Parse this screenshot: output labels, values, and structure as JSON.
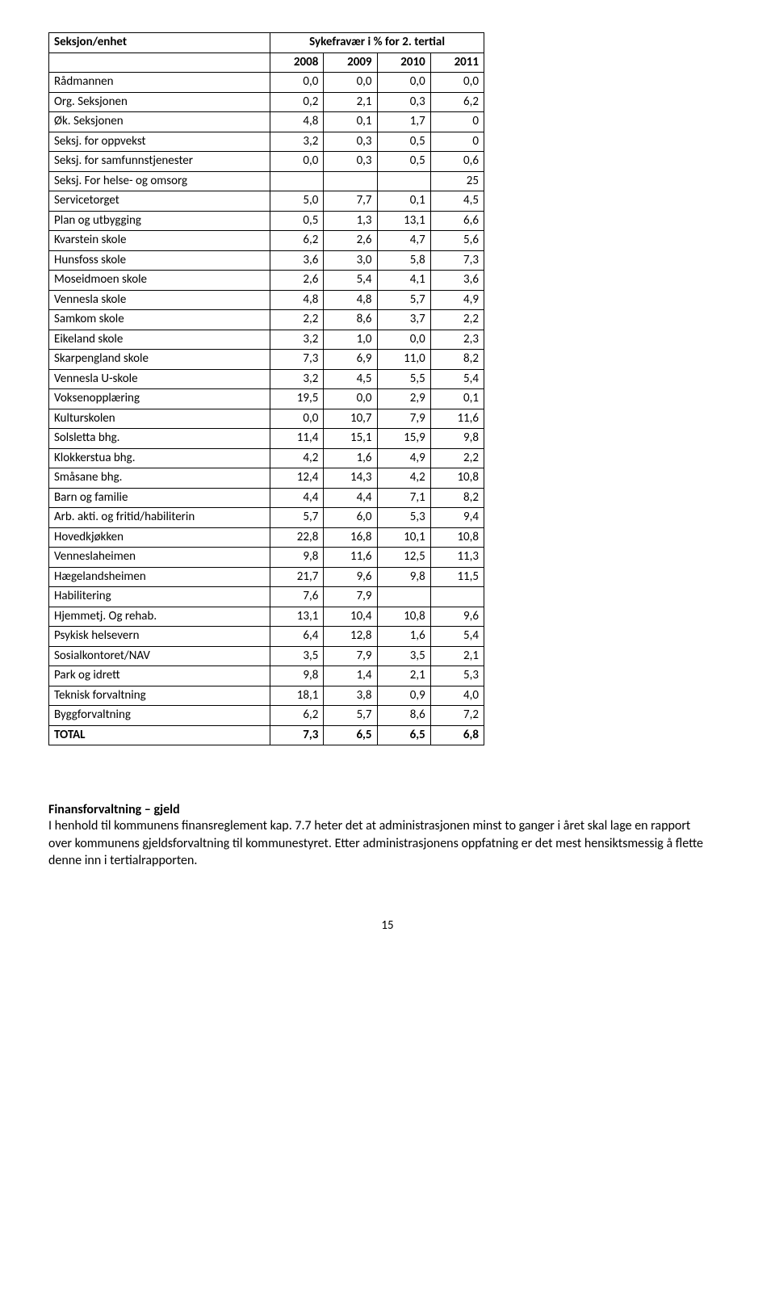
{
  "table": {
    "header1_left": "Seksjon/enhet",
    "header1_right": "Sykefravær i % for 2. tertial",
    "years": [
      "2008",
      "2009",
      "2010",
      "2011"
    ],
    "rows": [
      {
        "label": "Rådmannen",
        "v": [
          "0,0",
          "0,0",
          "0,0",
          "0,0"
        ]
      },
      {
        "label": "Org. Seksjonen",
        "v": [
          "0,2",
          "2,1",
          "0,3",
          "6,2"
        ]
      },
      {
        "label": "Øk. Seksjonen",
        "v": [
          "4,8",
          "0,1",
          "1,7",
          "0"
        ]
      },
      {
        "label": "Seksj. for oppvekst",
        "v": [
          "3,2",
          "0,3",
          "0,5",
          "0"
        ]
      },
      {
        "label": "Seksj. for samfunnstjenester",
        "v": [
          "0,0",
          "0,3",
          "0,5",
          "0,6"
        ]
      },
      {
        "label": "Seksj. For helse- og omsorg",
        "v": [
          "",
          "",
          "",
          "25"
        ]
      },
      {
        "label": "Servicetorget",
        "v": [
          "5,0",
          "7,7",
          "0,1",
          "4,5"
        ]
      },
      {
        "label": "Plan og utbygging",
        "v": [
          "0,5",
          "1,3",
          "13,1",
          "6,6"
        ]
      },
      {
        "label": "Kvarstein skole",
        "v": [
          "6,2",
          "2,6",
          "4,7",
          "5,6"
        ]
      },
      {
        "label": "Hunsfoss skole",
        "v": [
          "3,6",
          "3,0",
          "5,8",
          "7,3"
        ]
      },
      {
        "label": "Moseidmoen skole",
        "v": [
          "2,6",
          "5,4",
          "4,1",
          "3,6"
        ]
      },
      {
        "label": "Vennesla skole",
        "v": [
          "4,8",
          "4,8",
          "5,7",
          "4,9"
        ]
      },
      {
        "label": "Samkom skole",
        "v": [
          "2,2",
          "8,6",
          "3,7",
          "2,2"
        ]
      },
      {
        "label": "Eikeland skole",
        "v": [
          "3,2",
          "1,0",
          "0,0",
          "2,3"
        ]
      },
      {
        "label": "Skarpengland skole",
        "v": [
          "7,3",
          "6,9",
          "11,0",
          "8,2"
        ]
      },
      {
        "label": "Vennesla U-skole",
        "v": [
          "3,2",
          "4,5",
          "5,5",
          "5,4"
        ]
      },
      {
        "label": "Voksenopplæring",
        "v": [
          "19,5",
          "0,0",
          "2,9",
          "0,1"
        ]
      },
      {
        "label": "Kulturskolen",
        "v": [
          "0,0",
          "10,7",
          "7,9",
          "11,6"
        ]
      },
      {
        "label": "Solsletta bhg.",
        "v": [
          "11,4",
          "15,1",
          "15,9",
          "9,8"
        ]
      },
      {
        "label": "Klokkerstua bhg.",
        "v": [
          "4,2",
          "1,6",
          "4,9",
          "2,2"
        ]
      },
      {
        "label": "Småsane bhg.",
        "v": [
          "12,4",
          "14,3",
          "4,2",
          "10,8"
        ]
      },
      {
        "label": "Barn og familie",
        "v": [
          "4,4",
          "4,4",
          "7,1",
          "8,2"
        ]
      },
      {
        "label": "Arb. akti. og fritid/habiliterin",
        "v": [
          "5,7",
          "6,0",
          "5,3",
          "9,4"
        ]
      },
      {
        "label": "Hovedkjøkken",
        "v": [
          "22,8",
          "16,8",
          "10,1",
          "10,8"
        ]
      },
      {
        "label": "Venneslaheimen",
        "v": [
          "9,8",
          "11,6",
          "12,5",
          "11,3"
        ]
      },
      {
        "label": "Hægelandsheimen",
        "v": [
          "21,7",
          "9,6",
          "9,8",
          "11,5"
        ]
      },
      {
        "label": "Habilitering",
        "v": [
          "7,6",
          "7,9",
          "",
          ""
        ]
      },
      {
        "label": "Hjemmetj. Og rehab.",
        "v": [
          "13,1",
          "10,4",
          "10,8",
          "9,6"
        ]
      },
      {
        "label": "Psykisk helsevern",
        "v": [
          "6,4",
          "12,8",
          "1,6",
          "5,4"
        ]
      },
      {
        "label": "Sosialkontoret/NAV",
        "v": [
          "3,5",
          "7,9",
          "3,5",
          "2,1"
        ]
      },
      {
        "label": "Park og idrett",
        "v": [
          "9,8",
          "1,4",
          "2,1",
          "5,3"
        ]
      },
      {
        "label": "Teknisk forvaltning",
        "v": [
          "18,1",
          "3,8",
          "0,9",
          "4,0"
        ]
      },
      {
        "label": "Byggforvaltning",
        "v": [
          "6,2",
          "5,7",
          "8,6",
          "7,2"
        ]
      }
    ],
    "total": {
      "label": "TOTAL",
      "v": [
        "7,3",
        "6,5",
        "6,5",
        "6,8"
      ]
    }
  },
  "section": {
    "heading": "Finansforvaltning – gjeld",
    "body": "I henhold til kommunens finansreglement kap. 7.7 heter det at administrasjonen minst to ganger i året skal lage en rapport over kommunens gjeldsforvaltning til kommunestyret. Etter administrasjonens oppfatning er det mest hensiktsmessig å flette denne inn i tertialrapporten."
  },
  "page_number": "15"
}
